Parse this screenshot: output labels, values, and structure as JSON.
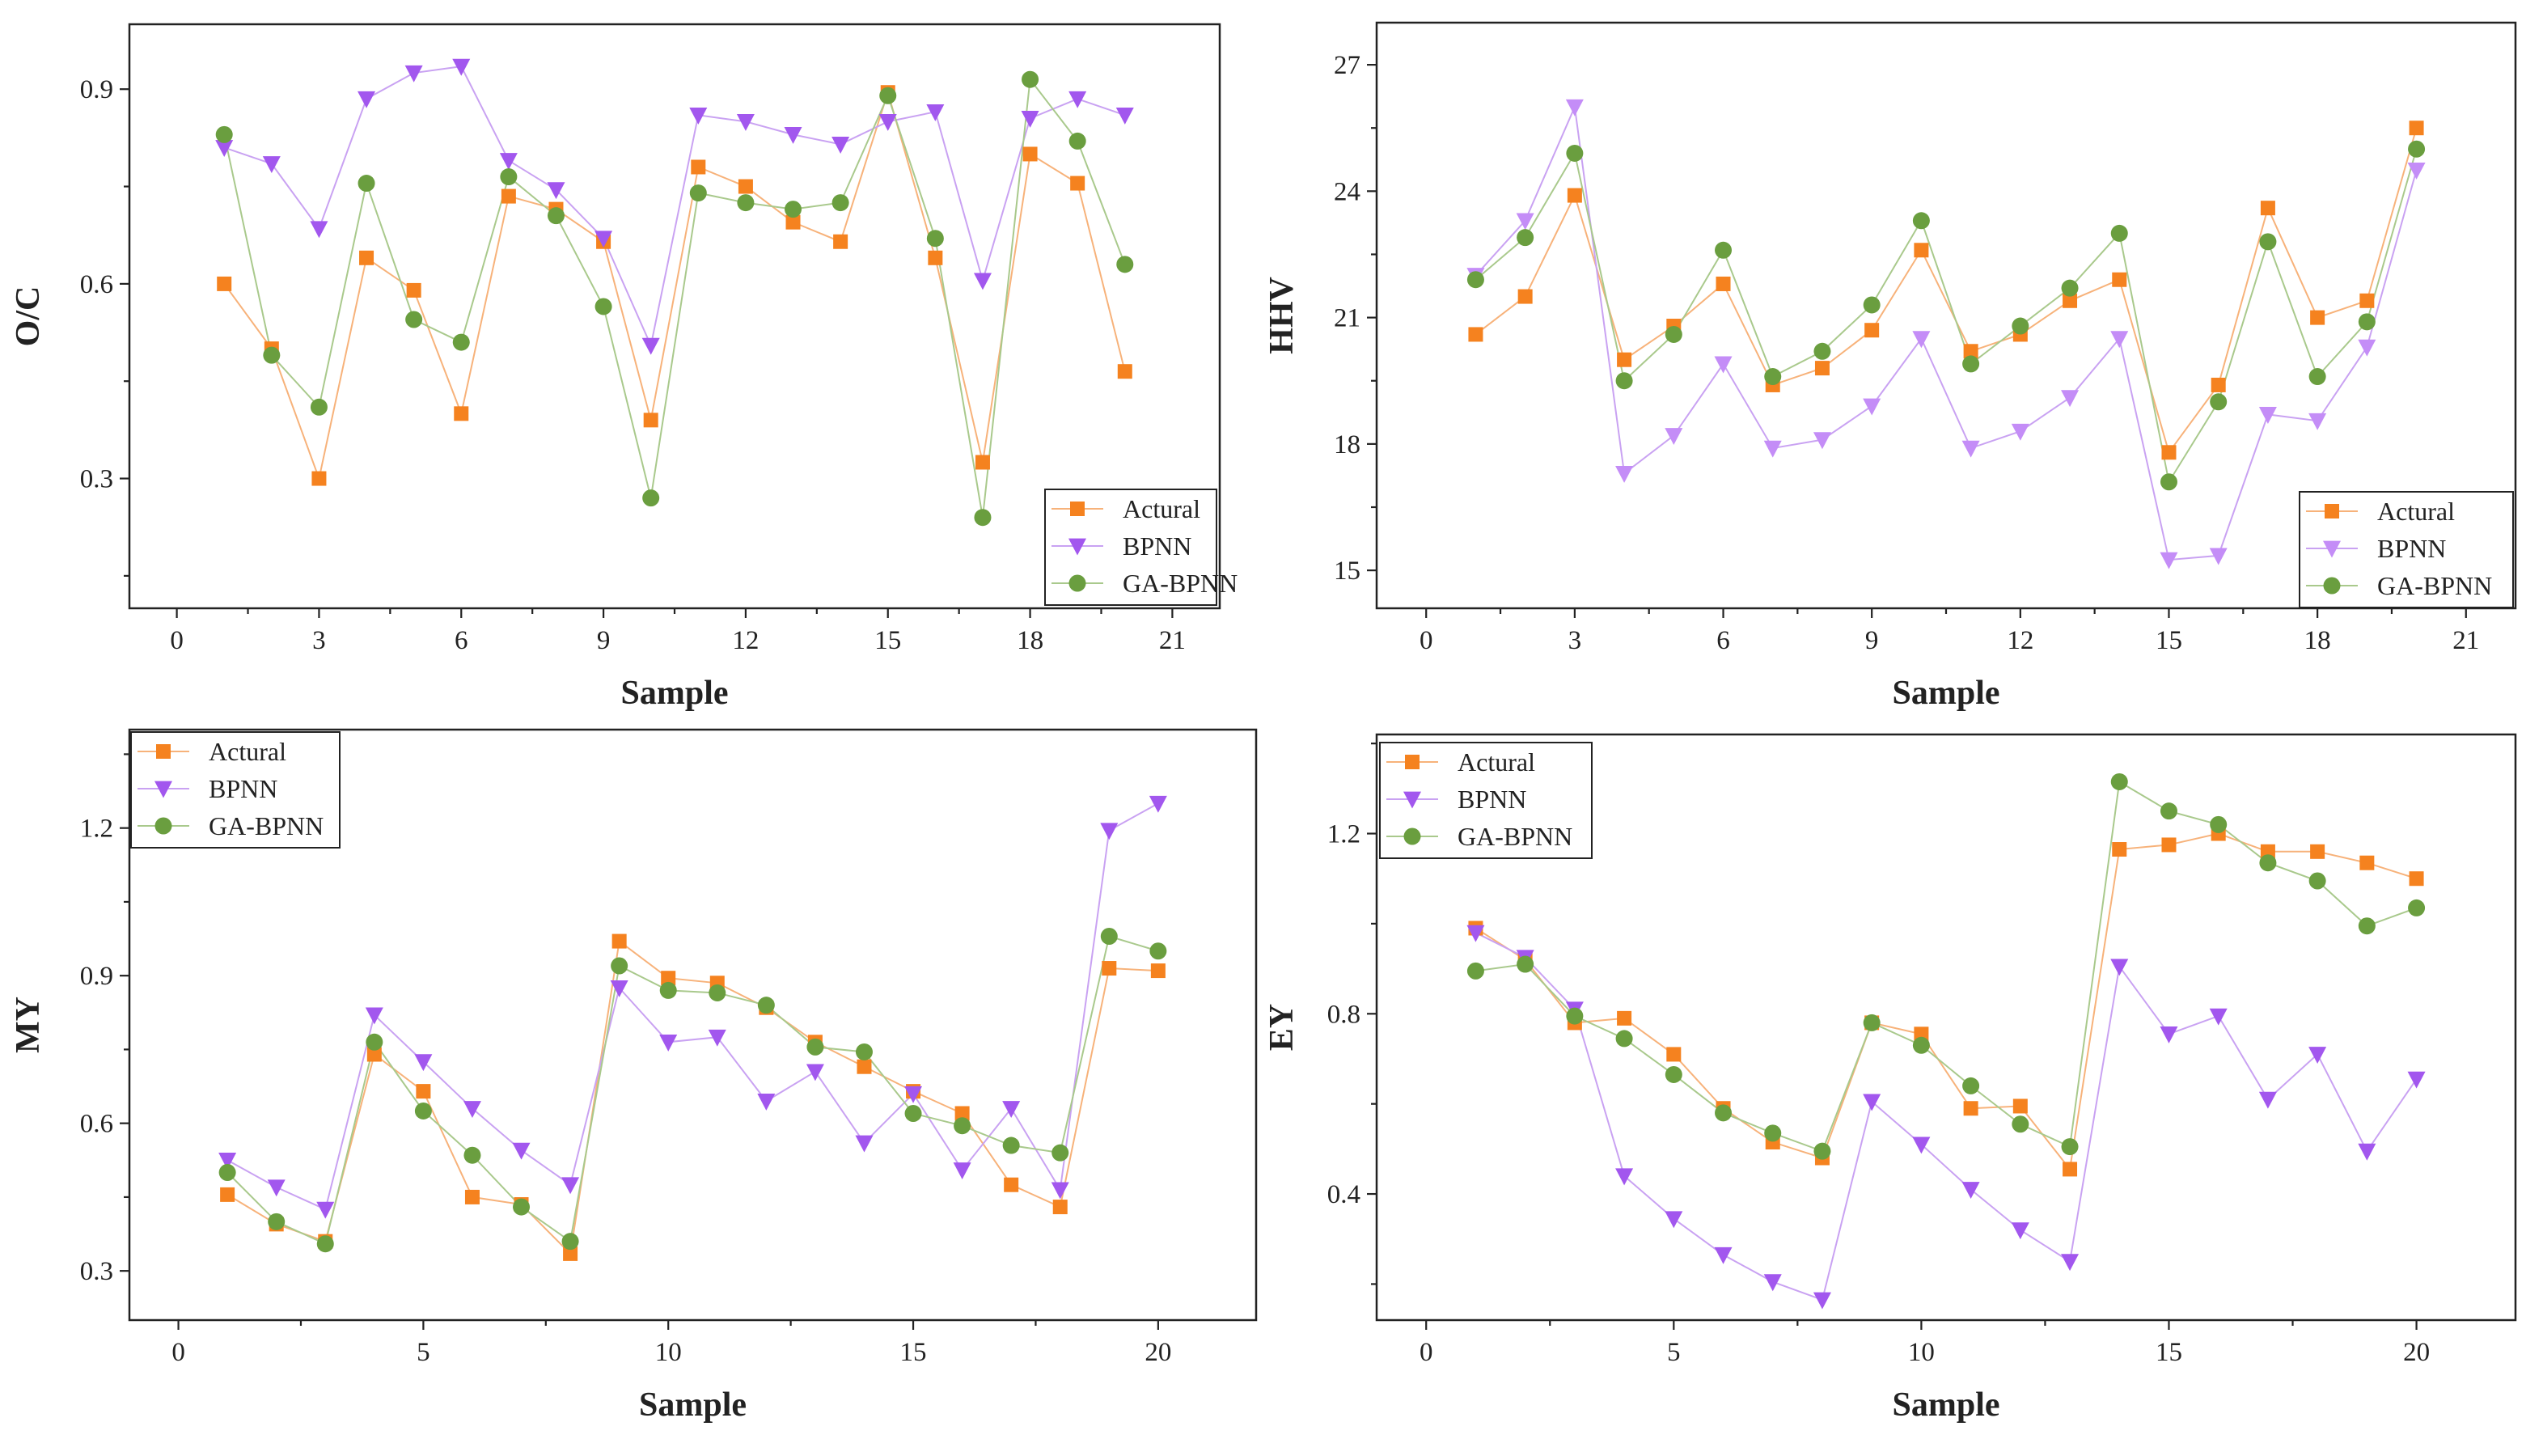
{
  "colors": {
    "actual": "#f5821f",
    "actual_line": "#f7b27a",
    "bpnn": "#a257ee",
    "bpnn_light": "#c48df7",
    "bpnn_line": "#c9a2f2",
    "ga": "#6a9e3f",
    "ga_line": "#a9c98c"
  },
  "chart_data": [
    {
      "id": "oc",
      "type": "line",
      "xlabel": "Sample",
      "ylabel": "O/C",
      "xlim": [
        -1,
        22
      ],
      "ylim": [
        0.1,
        1.0
      ],
      "xticks": [
        0,
        3,
        6,
        9,
        12,
        15,
        18,
        21
      ],
      "xtick_labels": [
        "0",
        "3",
        "6",
        "9",
        "12",
        "15",
        "18",
        "21"
      ],
      "yticks": [
        0.3,
        0.6,
        0.9
      ],
      "ytick_labels": [
        "0.3",
        "0.6",
        "0.9"
      ],
      "legend_position": "bottom-right",
      "legend": [
        "Actural",
        "BPNN",
        "GA-BPNN"
      ],
      "x": [
        1,
        2,
        3,
        4,
        5,
        6,
        7,
        8,
        9,
        10,
        11,
        12,
        13,
        14,
        15,
        16,
        17,
        18,
        19,
        20
      ],
      "series": [
        {
          "name": "Actural",
          "key": "actual",
          "values": [
            0.6,
            0.5,
            0.3,
            0.64,
            0.59,
            0.4,
            0.735,
            0.715,
            0.665,
            0.39,
            0.78,
            0.75,
            0.695,
            0.665,
            0.895,
            0.64,
            0.325,
            0.8,
            0.755,
            0.465
          ]
        },
        {
          "name": "BPNN",
          "key": "bpnn",
          "values": [
            0.81,
            0.785,
            0.685,
            0.885,
            0.925,
            0.935,
            0.79,
            0.745,
            0.67,
            0.505,
            0.86,
            0.85,
            0.83,
            0.815,
            0.85,
            0.865,
            0.605,
            0.855,
            0.885,
            0.86
          ]
        },
        {
          "name": "GA-BPNN",
          "key": "ga",
          "values": [
            0.83,
            0.49,
            0.41,
            0.755,
            0.545,
            0.51,
            0.765,
            0.705,
            0.565,
            0.27,
            0.74,
            0.725,
            0.715,
            0.725,
            0.89,
            0.67,
            0.24,
            0.915,
            0.82,
            0.63
          ]
        }
      ]
    },
    {
      "id": "hhv",
      "type": "line",
      "xlabel": "Sample",
      "ylabel": "HHV",
      "xlim": [
        -1,
        22
      ],
      "ylim": [
        14.1,
        28.0
      ],
      "xticks": [
        0,
        3,
        6,
        9,
        12,
        15,
        18,
        21
      ],
      "xtick_labels": [
        "0",
        "3",
        "6",
        "9",
        "12",
        "15",
        "18",
        "21"
      ],
      "yticks": [
        15,
        18,
        21,
        24,
        27
      ],
      "ytick_labels": [
        "15",
        "18",
        "21",
        "24",
        "27"
      ],
      "legend_position": "bottom-right",
      "legend": [
        "Actural",
        "BPNN",
        "GA-BPNN"
      ],
      "x": [
        1,
        2,
        3,
        4,
        5,
        6,
        7,
        8,
        9,
        10,
        11,
        12,
        13,
        14,
        15,
        16,
        17,
        18,
        19,
        20
      ],
      "series": [
        {
          "name": "Actural",
          "key": "actual",
          "values": [
            20.6,
            21.5,
            23.9,
            20.0,
            20.8,
            21.8,
            19.4,
            19.8,
            20.7,
            22.6,
            20.2,
            20.6,
            21.4,
            21.9,
            17.8,
            19.4,
            23.6,
            21.0,
            21.4,
            25.5
          ]
        },
        {
          "name": "BPNN",
          "key": "bpnn_light",
          "values": [
            22.0,
            23.3,
            26.0,
            17.3,
            18.2,
            19.9,
            17.9,
            18.1,
            18.9,
            20.5,
            17.9,
            18.3,
            19.1,
            20.5,
            15.25,
            15.35,
            18.7,
            18.55,
            20.3,
            24.5
          ]
        },
        {
          "name": "GA-BPNN",
          "key": "ga",
          "values": [
            21.9,
            22.9,
            24.9,
            19.5,
            20.6,
            22.6,
            19.6,
            20.2,
            21.3,
            23.3,
            19.9,
            20.8,
            21.7,
            23.0,
            17.1,
            19.0,
            22.8,
            19.6,
            20.9,
            25.0
          ]
        }
      ]
    },
    {
      "id": "my",
      "type": "line",
      "xlabel": "Sample",
      "ylabel": "MY",
      "xlim": [
        -1,
        22
      ],
      "ylim": [
        0.2,
        1.4
      ],
      "xticks": [
        0,
        5,
        10,
        15,
        20
      ],
      "xtick_labels": [
        "0",
        "5",
        "10",
        "15",
        "20"
      ],
      "yticks": [
        0.3,
        0.6,
        0.9,
        1.2
      ],
      "ytick_labels": [
        "0.3",
        "0.6",
        "0.9",
        "1.2"
      ],
      "legend_position": "top-left",
      "legend": [
        "Actural",
        "BPNN",
        "GA-BPNN"
      ],
      "x": [
        1,
        2,
        3,
        4,
        5,
        6,
        7,
        8,
        9,
        10,
        11,
        12,
        13,
        14,
        15,
        16,
        17,
        18,
        19,
        20
      ],
      "series": [
        {
          "name": "Actural",
          "key": "actual",
          "values": [
            0.455,
            0.395,
            0.36,
            0.74,
            0.665,
            0.45,
            0.435,
            0.335,
            0.97,
            0.895,
            0.885,
            0.835,
            0.765,
            0.715,
            0.665,
            0.62,
            0.475,
            0.43,
            0.915,
            0.91
          ]
        },
        {
          "name": "BPNN",
          "key": "bpnn",
          "values": [
            0.525,
            0.47,
            0.425,
            0.82,
            0.725,
            0.63,
            0.545,
            0.475,
            0.875,
            0.765,
            0.775,
            0.645,
            0.705,
            0.56,
            0.66,
            0.505,
            0.63,
            0.465,
            1.195,
            1.25
          ]
        },
        {
          "name": "GA-BPNN",
          "key": "ga",
          "values": [
            0.5,
            0.4,
            0.355,
            0.765,
            0.625,
            0.535,
            0.43,
            0.36,
            0.92,
            0.87,
            0.865,
            0.84,
            0.755,
            0.745,
            0.62,
            0.595,
            0.555,
            0.54,
            0.98,
            0.95
          ]
        }
      ]
    },
    {
      "id": "ey",
      "type": "line",
      "xlabel": "Sample",
      "ylabel": "EY",
      "xlim": [
        -1,
        22
      ],
      "ylim": [
        0.12,
        1.42
      ],
      "xticks": [
        0,
        5,
        10,
        15,
        20
      ],
      "xtick_labels": [
        "0",
        "5",
        "10",
        "15",
        "20"
      ],
      "yticks": [
        0.4,
        0.8,
        1.2
      ],
      "ytick_labels": [
        "0.4",
        "0.8",
        "1.2"
      ],
      "legend_position": "top-left",
      "legend": [
        "Actural",
        "BPNN",
        "GA-BPNN"
      ],
      "x": [
        1,
        2,
        3,
        4,
        5,
        6,
        7,
        8,
        9,
        10,
        11,
        12,
        13,
        14,
        15,
        16,
        17,
        18,
        19,
        20
      ],
      "series": [
        {
          "name": "Actural",
          "key": "actual",
          "values": [
            0.99,
            0.92,
            0.78,
            0.79,
            0.71,
            0.59,
            0.515,
            0.48,
            0.78,
            0.755,
            0.59,
            0.595,
            0.455,
            1.165,
            1.175,
            1.2,
            1.16,
            1.16,
            1.135,
            1.1
          ]
        },
        {
          "name": "BPNN",
          "key": "bpnn",
          "values": [
            0.98,
            0.925,
            0.81,
            0.44,
            0.345,
            0.265,
            0.205,
            0.165,
            0.605,
            0.51,
            0.41,
            0.32,
            0.25,
            0.905,
            0.755,
            0.795,
            0.61,
            0.71,
            0.495,
            0.655
          ]
        },
        {
          "name": "GA-BPNN",
          "key": "ga",
          "values": [
            0.895,
            0.91,
            0.795,
            0.745,
            0.665,
            0.58,
            0.535,
            0.495,
            0.78,
            0.73,
            0.64,
            0.555,
            0.505,
            1.315,
            1.25,
            1.22,
            1.135,
            1.095,
            0.995,
            1.035
          ]
        }
      ]
    }
  ]
}
